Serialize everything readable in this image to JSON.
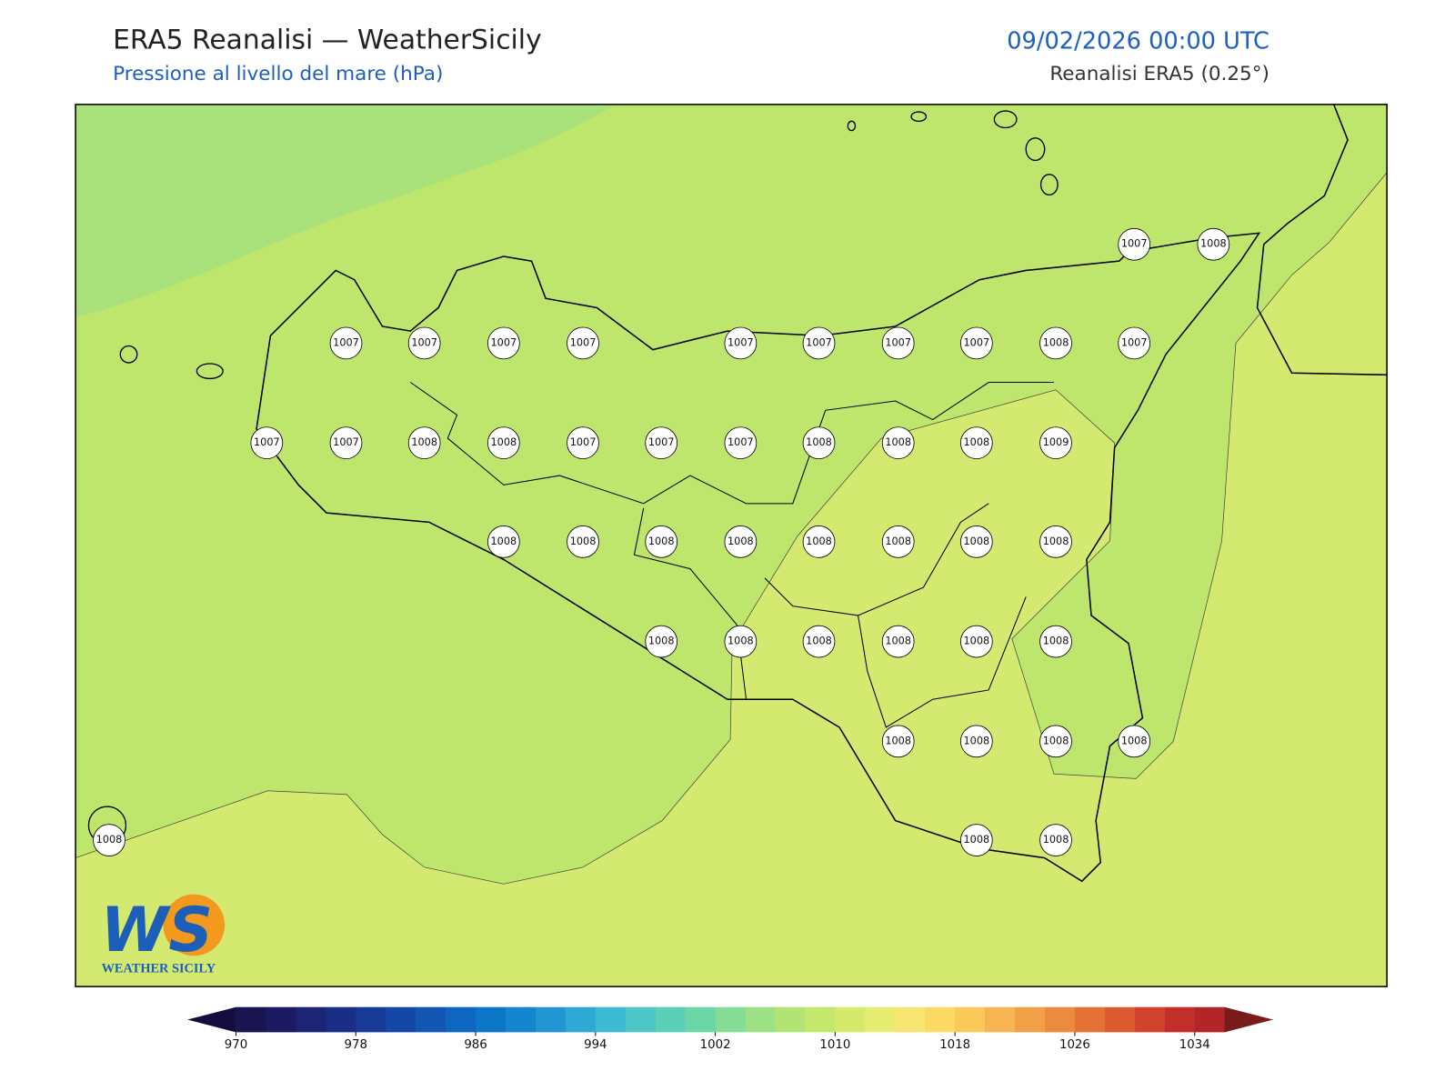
{
  "header": {
    "title": "ERA5 Reanalisi — WeatherSicily",
    "subtitle": "Pressione al livello del mare (hPa)",
    "datetime": "09/02/2026 00:00 UTC",
    "source": "Reanalisi ERA5 (0.25°)"
  },
  "stations": [
    1007,
    1008,
    1007,
    1007,
    1007,
    1007,
    1007,
    1007,
    1007,
    1007,
    1008,
    1007,
    1007,
    1007,
    1008,
    1008,
    1007,
    1007,
    1007,
    1008,
    1008,
    1008,
    1009,
    1008,
    1008,
    1008,
    1008,
    1008,
    1008,
    1008,
    1008,
    1008,
    1008,
    1008,
    1008,
    1008,
    1008,
    1008,
    1008,
    1008,
    1008,
    1008,
    1008,
    1008
  ],
  "colorbar": {
    "range": [
      970,
      1036
    ],
    "ticks": [
      970,
      978,
      986,
      994,
      1002,
      1010,
      1018,
      1026,
      1034
    ],
    "colors": [
      "#1a1450",
      "#1c1a62",
      "#1b2475",
      "#1a2e86",
      "#163a96",
      "#1448a6",
      "#1256b3",
      "#0f66c0",
      "#0c76c9",
      "#1386cf",
      "#2296d3",
      "#30a8d6",
      "#3dbad3",
      "#4cc6c6",
      "#5bcfb7",
      "#6dd6a6",
      "#85dc94",
      "#9de184",
      "#b1e475",
      "#c3e86b",
      "#d5ea6b",
      "#e6ec70",
      "#f6e671",
      "#fcd865",
      "#fbc85a",
      "#f6b550",
      "#f1a046",
      "#ec8a3d",
      "#e47236",
      "#dc5a30",
      "#d1432c",
      "#c22f2a",
      "#b32528"
    ],
    "extend_colors": [
      "#140e3e",
      "#7a1b1b"
    ]
  },
  "logo": {
    "letters": "WS",
    "text": "WEATHER SICILY"
  }
}
